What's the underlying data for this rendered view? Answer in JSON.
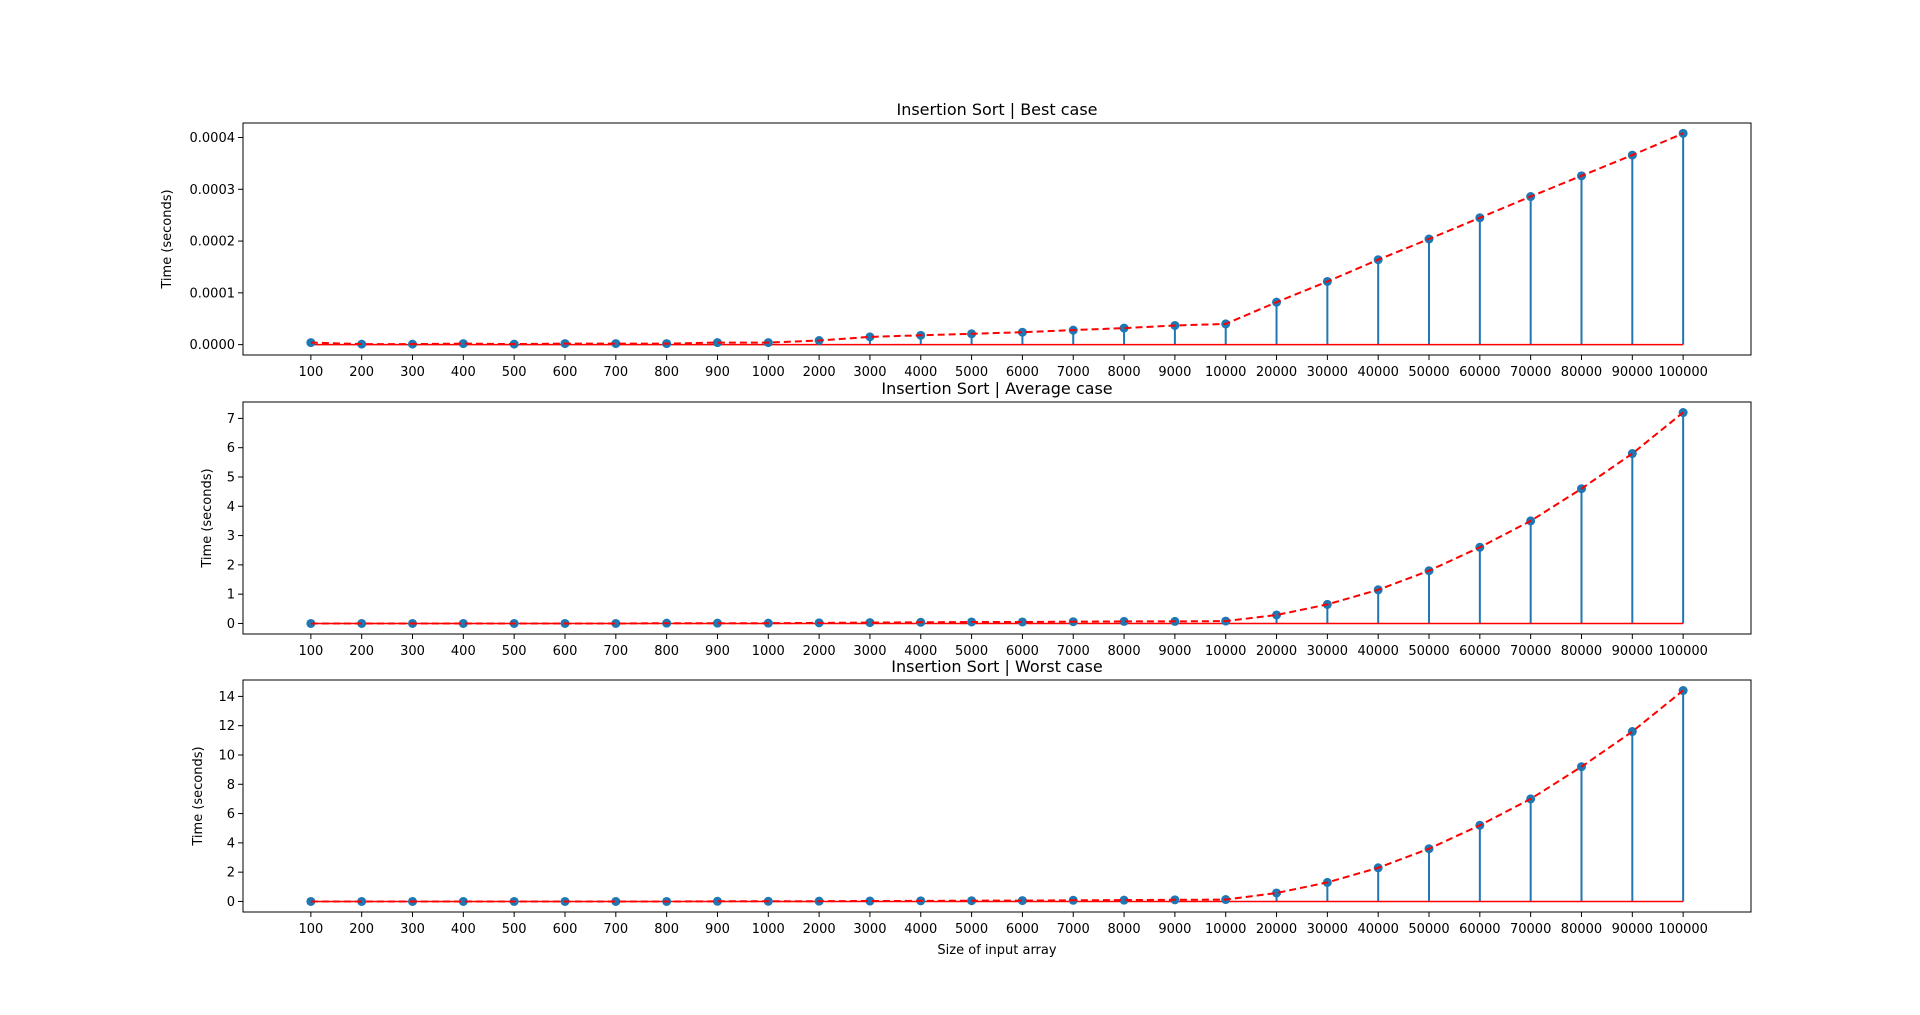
{
  "chart_data": [
    {
      "type": "stem",
      "title": "Insertion Sort | Best case",
      "xlabel": "",
      "ylabel": "Time (seconds)",
      "categories": [
        "100",
        "200",
        "300",
        "400",
        "500",
        "600",
        "700",
        "800",
        "900",
        "1000",
        "2000",
        "3000",
        "4000",
        "5000",
        "6000",
        "7000",
        "8000",
        "9000",
        "10000",
        "20000",
        "30000",
        "40000",
        "50000",
        "60000",
        "70000",
        "80000",
        "90000",
        "100000"
      ],
      "values": [
        4e-06,
        1e-06,
        1e-06,
        2e-06,
        1e-06,
        2e-06,
        2e-06,
        2e-06,
        4e-06,
        4e-06,
        8e-06,
        1.5e-05,
        1.8e-05,
        2.1e-05,
        2.4e-05,
        2.8e-05,
        3.2e-05,
        3.7e-05,
        4e-05,
        8.2e-05,
        0.000122,
        0.000164,
        0.000204,
        0.000245,
        0.000286,
        0.000326,
        0.000366,
        0.000408
      ],
      "yticks": [
        "0.0000",
        "0.0001",
        "0.0002",
        "0.0003",
        "0.0004"
      ],
      "ylim": [
        -2e-05,
        0.000428
      ],
      "line_style": "dashed",
      "colors": {
        "stem": "#1f77b4",
        "marker": "#1f77b4",
        "line": "#ff0000",
        "baseline": "#ff0000"
      }
    },
    {
      "type": "stem",
      "title": "Insertion Sort | Average case",
      "xlabel": "",
      "ylabel": "Time (seconds)",
      "categories": [
        "100",
        "200",
        "300",
        "400",
        "500",
        "600",
        "700",
        "800",
        "900",
        "1000",
        "2000",
        "3000",
        "4000",
        "5000",
        "6000",
        "7000",
        "8000",
        "9000",
        "10000",
        "20000",
        "30000",
        "40000",
        "50000",
        "60000",
        "70000",
        "80000",
        "90000",
        "100000"
      ],
      "values": [
        0.0,
        0.0,
        0.0,
        0.0,
        0.0,
        0.0,
        0.0,
        0.01,
        0.01,
        0.01,
        0.02,
        0.03,
        0.04,
        0.05,
        0.05,
        0.06,
        0.07,
        0.07,
        0.08,
        0.29,
        0.65,
        1.15,
        1.8,
        2.6,
        3.5,
        4.6,
        5.8,
        7.2
      ],
      "yticks": [
        "0",
        "1",
        "2",
        "3",
        "4",
        "5",
        "6",
        "7"
      ],
      "ylim": [
        -0.36,
        7.56
      ],
      "line_style": "dashed",
      "colors": {
        "stem": "#1f77b4",
        "marker": "#1f77b4",
        "line": "#ff0000",
        "baseline": "#ff0000"
      }
    },
    {
      "type": "stem",
      "title": "Insertion Sort | Worst case",
      "xlabel": "Size of input array",
      "ylabel": "Time (seconds)",
      "categories": [
        "100",
        "200",
        "300",
        "400",
        "500",
        "600",
        "700",
        "800",
        "900",
        "1000",
        "2000",
        "3000",
        "4000",
        "5000",
        "6000",
        "7000",
        "8000",
        "9000",
        "10000",
        "20000",
        "30000",
        "40000",
        "50000",
        "60000",
        "70000",
        "80000",
        "90000",
        "100000"
      ],
      "values": [
        0.0,
        0.0,
        0.0,
        0.0,
        0.0,
        0.0,
        0.0,
        0.0,
        0.01,
        0.01,
        0.02,
        0.03,
        0.04,
        0.05,
        0.06,
        0.08,
        0.09,
        0.11,
        0.13,
        0.58,
        1.3,
        2.3,
        3.6,
        5.2,
        7.0,
        9.2,
        11.6,
        14.4
      ],
      "yticks": [
        "0",
        "2",
        "4",
        "6",
        "8",
        "10",
        "12",
        "14"
      ],
      "ylim": [
        -0.72,
        15.12
      ],
      "line_style": "dashed",
      "colors": {
        "stem": "#1f77b4",
        "marker": "#1f77b4",
        "line": "#ff0000",
        "baseline": "#ff0000"
      }
    }
  ]
}
